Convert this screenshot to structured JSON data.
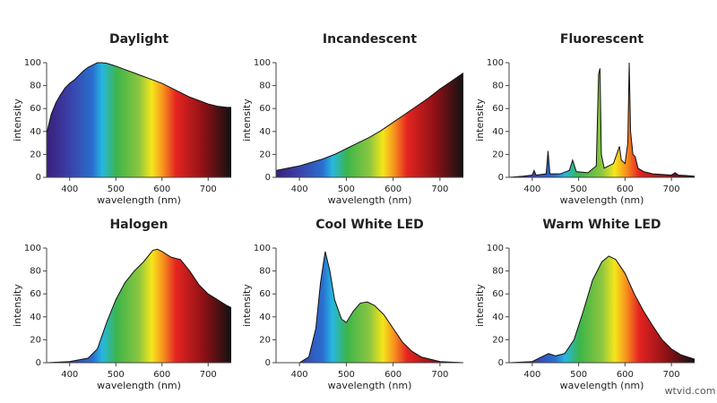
{
  "chart_data": [
    {
      "type": "area",
      "title": "Daylight",
      "xlabel": "wavelength (nm)",
      "ylabel": "intensity",
      "x": [
        350,
        360,
        370,
        380,
        390,
        400,
        410,
        420,
        430,
        440,
        450,
        460,
        470,
        480,
        500,
        520,
        540,
        560,
        580,
        600,
        620,
        640,
        660,
        680,
        700,
        720,
        740,
        750
      ],
      "values": [
        38,
        55,
        65,
        72,
        78,
        82,
        85,
        89,
        93,
        96,
        98,
        100,
        100,
        99.5,
        97,
        94,
        91,
        88,
        85,
        82,
        78,
        74,
        70,
        67,
        64,
        62,
        61,
        61
      ],
      "xlim": [
        350,
        750
      ],
      "ylim": [
        0,
        100
      ],
      "xticks": [
        400,
        500,
        600,
        700
      ],
      "yticks": [
        0,
        20,
        40,
        60,
        80,
        100
      ]
    },
    {
      "type": "area",
      "title": "Incandescent",
      "xlabel": "wavelength (nm)",
      "ylabel": "intensity",
      "x": [
        350,
        375,
        400,
        425,
        450,
        475,
        500,
        525,
        550,
        575,
        600,
        625,
        650,
        675,
        700,
        725,
        750
      ],
      "values": [
        6,
        8,
        10,
        13,
        16,
        20,
        25,
        30,
        35,
        41,
        48,
        55,
        62,
        69,
        77,
        84,
        91
      ],
      "xlim": [
        350,
        750
      ],
      "ylim": [
        0,
        100
      ],
      "xticks": [
        400,
        500,
        600,
        700
      ],
      "yticks": [
        0,
        20,
        40,
        60,
        80,
        100
      ]
    },
    {
      "type": "area",
      "title": "Fluorescent",
      "xlabel": "wavelength (nm)",
      "ylabel": "intensity",
      "x": [
        350,
        380,
        400,
        404,
        408,
        430,
        434,
        438,
        460,
        480,
        487,
        495,
        520,
        538,
        543,
        546,
        549,
        555,
        575,
        582,
        588,
        592,
        600,
        606,
        609,
        612,
        617,
        622,
        628,
        640,
        660,
        700,
        708,
        715,
        750
      ],
      "values": [
        0,
        1,
        2,
        6,
        2,
        3,
        23,
        3,
        3,
        6,
        15,
        5,
        4,
        10,
        90,
        95,
        20,
        8,
        12,
        20,
        27,
        15,
        12,
        30,
        100,
        40,
        20,
        18,
        8,
        5,
        3,
        2,
        4,
        2,
        1
      ],
      "xlim": [
        350,
        750
      ],
      "ylim": [
        0,
        100
      ],
      "xticks": [
        400,
        500,
        600,
        700
      ],
      "yticks": [
        0,
        20,
        40,
        60,
        80,
        100
      ]
    },
    {
      "type": "area",
      "title": "Halogen",
      "xlabel": "wavelength (nm)",
      "ylabel": "intensity",
      "x": [
        350,
        400,
        440,
        460,
        480,
        500,
        520,
        540,
        560,
        580,
        590,
        600,
        620,
        640,
        660,
        680,
        700,
        720,
        740,
        750
      ],
      "values": [
        0,
        1,
        4,
        12,
        35,
        55,
        70,
        80,
        88,
        98,
        99,
        97,
        92,
        90,
        80,
        68,
        60,
        55,
        50,
        48
      ],
      "xlim": [
        350,
        750
      ],
      "ylim": [
        0,
        100
      ],
      "xticks": [
        400,
        500,
        600,
        700
      ],
      "yticks": [
        0,
        20,
        40,
        60,
        80,
        100
      ]
    },
    {
      "type": "area",
      "title": "Cool White LED",
      "xlabel": "wavelength (nm)",
      "ylabel": "intensity",
      "x": [
        350,
        400,
        420,
        435,
        445,
        455,
        465,
        475,
        490,
        500,
        515,
        530,
        545,
        560,
        580,
        600,
        620,
        640,
        660,
        700,
        750
      ],
      "values": [
        0,
        0,
        5,
        30,
        70,
        97,
        80,
        55,
        38,
        35,
        45,
        52,
        53,
        50,
        42,
        30,
        18,
        10,
        5,
        1,
        0
      ],
      "xlim": [
        350,
        750
      ],
      "ylim": [
        0,
        100
      ],
      "xticks": [
        400,
        500,
        600,
        700
      ],
      "yticks": [
        0,
        20,
        40,
        60,
        80,
        100
      ]
    },
    {
      "type": "area",
      "title": "Warm White LED",
      "xlabel": "wavelength (nm)",
      "ylabel": "intensity",
      "x": [
        350,
        400,
        420,
        435,
        450,
        470,
        490,
        510,
        530,
        550,
        565,
        580,
        600,
        620,
        640,
        660,
        680,
        700,
        720,
        750
      ],
      "values": [
        0,
        1,
        5,
        8,
        6,
        8,
        20,
        45,
        72,
        88,
        93,
        90,
        78,
        60,
        45,
        32,
        20,
        12,
        7,
        3
      ],
      "xlim": [
        350,
        750
      ],
      "ylim": [
        0,
        100
      ],
      "xticks": [
        400,
        500,
        600,
        700
      ],
      "yticks": [
        0,
        20,
        40,
        60,
        80,
        100
      ]
    }
  ],
  "watermark": "wtvid.com"
}
